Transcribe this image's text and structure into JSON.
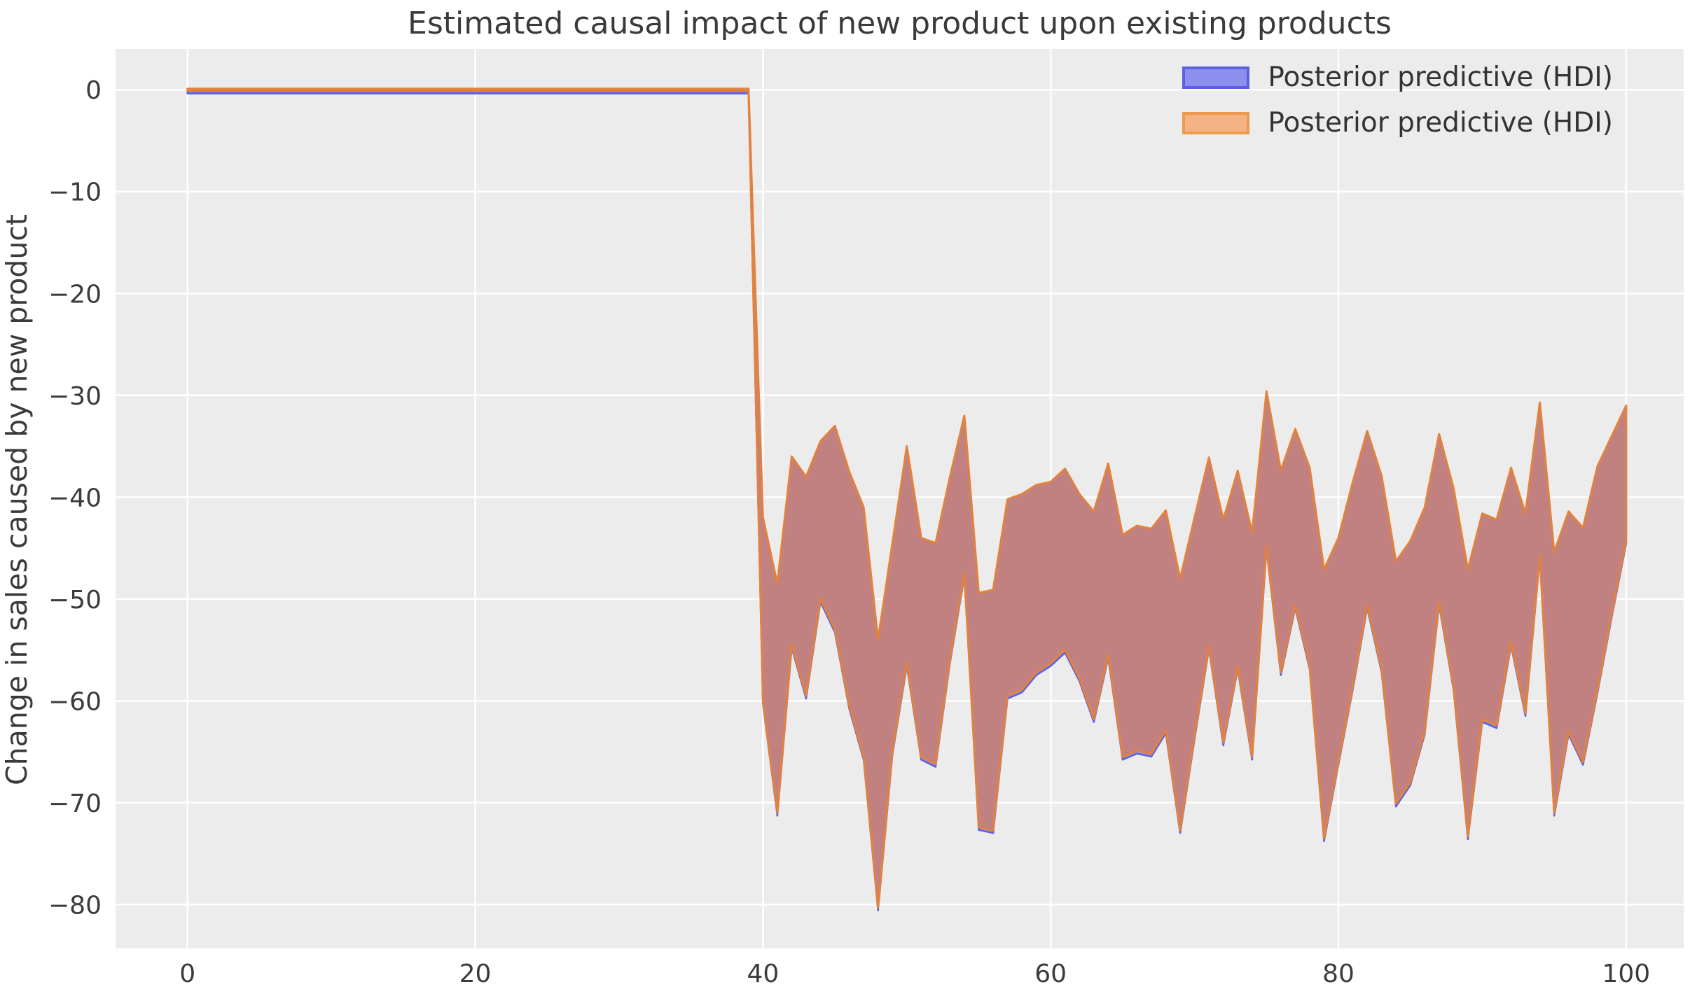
{
  "title": "Estimated causal impact of new product upon existing products",
  "legend": {
    "entries": [
      {
        "label": "Posterior predictive (HDI)",
        "fill": "#8d8fee",
        "edge": "#5c60e0"
      },
      {
        "label": "Posterior predictive (HDI)",
        "fill": "#f4b384",
        "edge": "#ee9a4e"
      }
    ]
  },
  "colors": {
    "plot_background": "#ececec",
    "grid": "#ffffff",
    "band_overlap_fill": "#c28181",
    "band_orange_edge": "#e2823f",
    "band_blue_fill": "#9193ee",
    "band_blue_edge": "#5c60e0",
    "tick_text": "#3b3b3b",
    "title_text": "#3a3a3a"
  },
  "chart_data": {
    "type": "area",
    "title": "Estimated causal impact of new product upon existing products",
    "xlabel": "",
    "ylabel": "Change in sales caused by new product",
    "xlim": [
      -5,
      104
    ],
    "ylim": [
      -84.3,
      4
    ],
    "xticks": [
      0,
      20,
      40,
      60,
      80,
      100
    ],
    "yticks": [
      0,
      -10,
      -20,
      -30,
      -40,
      -50,
      -60,
      -70,
      -80
    ],
    "grid": true,
    "legend_position": "upper right",
    "series": [
      {
        "name": "Posterior predictive (HDI)",
        "type": "band",
        "color": "#8d8fee"
      },
      {
        "name": "Posterior predictive (HDI)",
        "type": "band",
        "color": "#f4b384"
      }
    ],
    "band": {
      "comment": "Two HDI bands (blue under orange) that almost exactly overlap; flat at 0 for x=0..39 (pre-intervention), then a persistent negative causal impact of roughly -30 to -80 for x=40..100.",
      "x": [
        0,
        1,
        2,
        3,
        4,
        5,
        6,
        7,
        8,
        9,
        10,
        11,
        12,
        13,
        14,
        15,
        16,
        17,
        18,
        19,
        20,
        21,
        22,
        23,
        24,
        25,
        26,
        27,
        28,
        29,
        30,
        31,
        32,
        33,
        34,
        35,
        36,
        37,
        38,
        39,
        40,
        41,
        42,
        43,
        44,
        45,
        46,
        47,
        48,
        49,
        50,
        51,
        52,
        53,
        54,
        55,
        56,
        57,
        58,
        59,
        60,
        61,
        62,
        63,
        64,
        65,
        66,
        67,
        68,
        69,
        70,
        71,
        72,
        73,
        74,
        75,
        76,
        77,
        78,
        79,
        80,
        81,
        82,
        83,
        84,
        85,
        86,
        87,
        88,
        89,
        90,
        91,
        92,
        93,
        94,
        95,
        96,
        97,
        98,
        99,
        100
      ],
      "upper": [
        0.1,
        0.1,
        0.1,
        0.1,
        0.1,
        0.1,
        0.1,
        0.1,
        0.1,
        0.1,
        0.1,
        0.1,
        0.1,
        0.1,
        0.1,
        0.1,
        0.1,
        0.1,
        0.1,
        0.1,
        0.1,
        0.1,
        0.1,
        0.1,
        0.1,
        0.1,
        0.1,
        0.1,
        0.1,
        0.1,
        0.1,
        0.1,
        0.1,
        0.1,
        0.1,
        0.1,
        0.1,
        0.1,
        0.1,
        0.1,
        -42,
        -48.5,
        -36,
        -38,
        -34.5,
        -33,
        -37.5,
        -41,
        -54,
        -44.5,
        -35,
        -44,
        -44.5,
        -38,
        -32,
        -49.4,
        -49.1,
        -40.2,
        -39.7,
        -38.8,
        -38.5,
        -37.2,
        -39.7,
        -41.4,
        -36.7,
        -43.7,
        -42.8,
        -43.1,
        -41.3,
        -48,
        -42,
        -36.1,
        -42.2,
        -37.4,
        -43.5,
        -29.6,
        -37.4,
        -33.3,
        -37.1,
        -47.1,
        -44,
        -38.5,
        -33.5,
        -37.9,
        -46.3,
        -44.3,
        -41,
        -33.8,
        -39.1,
        -47.1,
        -41.6,
        -42.2,
        -37.1,
        -41.6,
        -30.7,
        -45.4,
        -41.4,
        -43,
        -37,
        -34,
        -31
      ],
      "lower": [
        -0.1,
        -0.1,
        -0.1,
        -0.1,
        -0.1,
        -0.1,
        -0.1,
        -0.1,
        -0.1,
        -0.1,
        -0.1,
        -0.1,
        -0.1,
        -0.1,
        -0.1,
        -0.1,
        -0.1,
        -0.1,
        -0.1,
        -0.1,
        -0.1,
        -0.1,
        -0.1,
        -0.1,
        -0.1,
        -0.1,
        -0.1,
        -0.1,
        -0.1,
        -0.1,
        -0.1,
        -0.1,
        -0.1,
        -0.1,
        -0.1,
        -0.1,
        -0.1,
        -0.1,
        -0.1,
        -0.1,
        -60,
        -71,
        -54.5,
        -59.5,
        -50,
        -53,
        -60.5,
        -65.5,
        -80.3,
        -65,
        -56.3,
        -65.5,
        -66.2,
        -56,
        -47.5,
        -72.4,
        -72.7,
        -59.5,
        -58.9,
        -57.2,
        -56.3,
        -55,
        -57.8,
        -61.8,
        -55.5,
        -65.5,
        -64.9,
        -65.2,
        -62.9,
        -72.7,
        -63.5,
        -54.6,
        -64.1,
        -56.6,
        -65.5,
        -44.8,
        -57.2,
        -50.6,
        -56.6,
        -73.5,
        -66,
        -58.6,
        -50.6,
        -56.9,
        -70.1,
        -68,
        -63,
        -50.3,
        -58.6,
        -73.3,
        -61.8,
        -62.4,
        -54.3,
        -61.2,
        -45.7,
        -71,
        -63,
        -66,
        -59,
        -51.5,
        -44.3
      ]
    }
  }
}
